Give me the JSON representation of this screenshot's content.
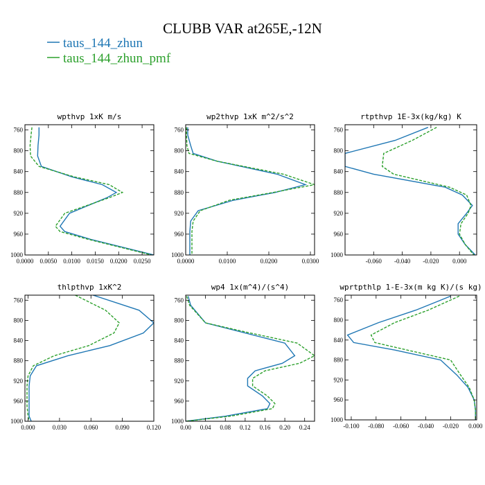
{
  "figure": {
    "title": "CLUBB VAR at265E,-12N",
    "legend": [
      {
        "label": "taus_144_zhun",
        "color": "#1f77b4",
        "dash": "solid"
      },
      {
        "label": "taus_144_zhun_pmf",
        "color": "#2ca02c",
        "dash": "dashed"
      }
    ]
  },
  "chart_data": [
    {
      "type": "line",
      "title": "wpthvp  1xK m/s",
      "ylim": [
        1000,
        750
      ],
      "yticks": [
        760,
        800,
        840,
        880,
        920,
        960,
        1000
      ],
      "ytick_labels": [
        "760",
        "800",
        "840",
        "880",
        "920",
        "960",
        "1000"
      ],
      "xlim": [
        0,
        0.0275
      ],
      "xticks": [
        0,
        0.005,
        0.01,
        0.015,
        0.02,
        0.025
      ],
      "xtick_labels": [
        "0.0000",
        "0.0050",
        "0.0100",
        "0.0150",
        "0.0200",
        "0.0250"
      ],
      "series": [
        {
          "name": "taus_144_zhun",
          "color": "#1f77b4",
          "dash": "solid",
          "x": [
            0.003,
            0.003,
            0.0028,
            0.0027,
            0.0035,
            0.01,
            0.0165,
            0.0195,
            0.0175,
            0.0095,
            0.0075,
            0.0085,
            0.014,
            0.0275
          ],
          "y": [
            755,
            770,
            790,
            810,
            830,
            850,
            865,
            880,
            890,
            920,
            945,
            955,
            970,
            1000
          ]
        },
        {
          "name": "taus_144_zhun_pmf",
          "color": "#2ca02c",
          "dash": "dashed",
          "x": [
            0.0015,
            0.0013,
            0.0011,
            0.0012,
            0.003,
            0.0105,
            0.018,
            0.0208,
            0.018,
            0.0085,
            0.0065,
            0.0075,
            0.0135,
            0.027
          ],
          "y": [
            755,
            770,
            790,
            810,
            830,
            850,
            865,
            880,
            890,
            920,
            945,
            955,
            970,
            1000
          ]
        }
      ]
    },
    {
      "type": "line",
      "title": "wp2thvp  1xK m^2/s^2",
      "ylim": [
        1000,
        750
      ],
      "yticks": [
        760,
        800,
        840,
        880,
        920,
        960,
        1000
      ],
      "ytick_labels": [
        "760",
        "800",
        "840",
        "880",
        "920",
        "960",
        "1000"
      ],
      "xlim": [
        0,
        0.031
      ],
      "xticks": [
        0,
        0.01,
        0.02,
        0.03
      ],
      "xtick_labels": [
        "0.0000",
        "0.0100",
        "0.0200",
        "0.0300"
      ],
      "series": [
        {
          "name": "taus_144_zhun",
          "color": "#1f77b4",
          "dash": "solid",
          "x": [
            0.0005,
            0.0005,
            0.0012,
            0.0018,
            0.0075,
            0.022,
            0.0288,
            0.0215,
            0.0115,
            0.003,
            0.0012,
            0.001,
            0.001,
            0.001
          ],
          "y": [
            755,
            770,
            790,
            805,
            820,
            845,
            865,
            880,
            895,
            915,
            935,
            955,
            975,
            1000
          ]
        },
        {
          "name": "taus_144_zhun_pmf",
          "color": "#2ca02c",
          "dash": "dashed",
          "x": [
            0.0002,
            0.0002,
            0.0003,
            0.0008,
            0.0075,
            0.0235,
            0.031,
            0.021,
            0.0105,
            0.0035,
            0.0018,
            0.0015,
            0.0015,
            0.0015
          ],
          "y": [
            755,
            770,
            790,
            805,
            820,
            845,
            865,
            880,
            895,
            915,
            935,
            955,
            975,
            1000
          ]
        }
      ]
    },
    {
      "type": "line",
      "title": "rtpthvp  1E-3x(kg/kg) K",
      "ylim": [
        1000,
        750
      ],
      "yticks": [
        760,
        800,
        840,
        880,
        920,
        960,
        1000
      ],
      "ytick_labels": [
        "760",
        "800",
        "840",
        "880",
        "920",
        "960",
        "1000"
      ],
      "xlim": [
        -0.08,
        0.012
      ],
      "xticks": [
        -0.06,
        -0.04,
        -0.02,
        0
      ],
      "xtick_labels": [
        "-0.060",
        "-0.040",
        "-0.020",
        "0.000"
      ],
      "series": [
        {
          "name": "taus_144_zhun",
          "color": "#1f77b4",
          "dash": "solid",
          "x": [
            -0.022,
            -0.045,
            -0.08,
            -0.08,
            -0.06,
            -0.01,
            0.002,
            0.009,
            0.005,
            -0.001,
            -0.001,
            0.004,
            0.011
          ],
          "y": [
            755,
            780,
            805,
            830,
            845,
            870,
            885,
            905,
            920,
            940,
            960,
            980,
            1000
          ]
        },
        {
          "name": "taus_144_zhun_pmf",
          "color": "#2ca02c",
          "dash": "dashed",
          "x": [
            -0.016,
            -0.033,
            -0.053,
            -0.054,
            -0.046,
            -0.007,
            0.005,
            0.008,
            0.006,
            0.001,
            0.0,
            0.004,
            0.01
          ],
          "y": [
            755,
            780,
            805,
            830,
            845,
            870,
            885,
            905,
            920,
            940,
            960,
            980,
            1000
          ]
        }
      ]
    },
    {
      "type": "line",
      "title": "thlpthvp  1xK^2",
      "ylim": [
        1000,
        750
      ],
      "yticks": [
        760,
        800,
        840,
        880,
        920,
        960,
        1000
      ],
      "ytick_labels": [
        "760",
        "800",
        "840",
        "880",
        "920",
        "960",
        "1000"
      ],
      "xlim": [
        -0.003,
        0.12
      ],
      "xticks": [
        0,
        0.03,
        0.06,
        0.09,
        0.12
      ],
      "xtick_labels": [
        "0.000",
        "0.030",
        "0.060",
        "0.090",
        "0.120"
      ],
      "series": [
        {
          "name": "taus_144_zhun",
          "color": "#1f77b4",
          "dash": "solid",
          "x": [
            0.062,
            0.106,
            0.12,
            0.11,
            0.078,
            0.038,
            0.008,
            0.002,
            0.001,
            0.001,
            0.001,
            0.001,
            0.003
          ],
          "y": [
            750,
            780,
            805,
            825,
            850,
            870,
            890,
            910,
            930,
            950,
            970,
            990,
            1000
          ]
        },
        {
          "name": "taus_144_zhun_pmf",
          "color": "#2ca02c",
          "dash": "dashed",
          "x": [
            0.045,
            0.074,
            0.087,
            0.082,
            0.058,
            0.025,
            0.005,
            0.0,
            -0.001,
            -0.001,
            -0.001,
            0.0,
            0.001
          ],
          "y": [
            750,
            780,
            805,
            825,
            850,
            870,
            890,
            910,
            930,
            950,
            970,
            990,
            1000
          ]
        }
      ]
    },
    {
      "type": "line",
      "title": "wp4  1x(m^4)/(s^4)",
      "ylim": [
        1000,
        750
      ],
      "yticks": [
        760,
        800,
        840,
        880,
        920,
        960,
        1000
      ],
      "ytick_labels": [
        "760",
        "800",
        "840",
        "880",
        "920",
        "960",
        "1000"
      ],
      "xlim": [
        0,
        0.26
      ],
      "xticks": [
        0,
        0.04,
        0.08,
        0.12,
        0.16,
        0.2,
        0.24
      ],
      "xtick_labels": [
        "0.00",
        "0.04",
        "0.08",
        "0.12",
        "0.16",
        "0.20",
        "0.24"
      ],
      "series": [
        {
          "name": "taus_144_zhun",
          "color": "#1f77b4",
          "dash": "solid",
          "x": [
            0.005,
            0.01,
            0.04,
            0.12,
            0.2,
            0.22,
            0.195,
            0.14,
            0.125,
            0.125,
            0.155,
            0.17,
            0.165,
            0.08,
            0.0
          ],
          "y": [
            752,
            770,
            805,
            825,
            845,
            870,
            885,
            900,
            915,
            930,
            950,
            965,
            975,
            990,
            1000
          ]
        },
        {
          "name": "taus_144_zhun_pmf",
          "color": "#2ca02c",
          "dash": "dashed",
          "x": [
            0.002,
            0.008,
            0.04,
            0.13,
            0.225,
            0.26,
            0.23,
            0.16,
            0.135,
            0.135,
            0.165,
            0.18,
            0.175,
            0.09,
            0.0
          ],
          "y": [
            752,
            770,
            805,
            825,
            845,
            870,
            885,
            900,
            915,
            930,
            950,
            965,
            975,
            990,
            1000
          ]
        }
      ]
    },
    {
      "type": "line",
      "title": "wprtpthlp  1-E-3x(m kg K)/(s kg)",
      "ylim": [
        1000,
        750
      ],
      "yticks": [
        760,
        800,
        840,
        880,
        920,
        960,
        1000
      ],
      "ytick_labels": [
        "760",
        "800",
        "840",
        "880",
        "920",
        "960",
        "1000"
      ],
      "xlim": [
        -0.105,
        0.001
      ],
      "xticks": [
        -0.1,
        -0.08,
        -0.06,
        -0.04,
        -0.02,
        0
      ],
      "xtick_labels": [
        "-0.100",
        "-0.080",
        "-0.060",
        "-0.040",
        "-0.020",
        "0.000"
      ],
      "series": [
        {
          "name": "taus_144_zhun",
          "color": "#1f77b4",
          "dash": "solid",
          "x": [
            -0.02,
            -0.048,
            -0.078,
            -0.103,
            -0.098,
            -0.065,
            -0.028,
            -0.015,
            -0.006,
            -0.001,
            0.0,
            0.0
          ],
          "y": [
            752,
            780,
            805,
            830,
            845,
            860,
            880,
            910,
            935,
            960,
            980,
            1000
          ]
        },
        {
          "name": "taus_144_zhun_pmf",
          "color": "#2ca02c",
          "dash": "dashed",
          "x": [
            -0.013,
            -0.038,
            -0.065,
            -0.084,
            -0.081,
            -0.055,
            -0.02,
            -0.012,
            -0.005,
            -0.001,
            0.0,
            0.0
          ],
          "y": [
            752,
            780,
            805,
            830,
            845,
            860,
            880,
            910,
            935,
            960,
            980,
            1000
          ]
        }
      ]
    }
  ]
}
